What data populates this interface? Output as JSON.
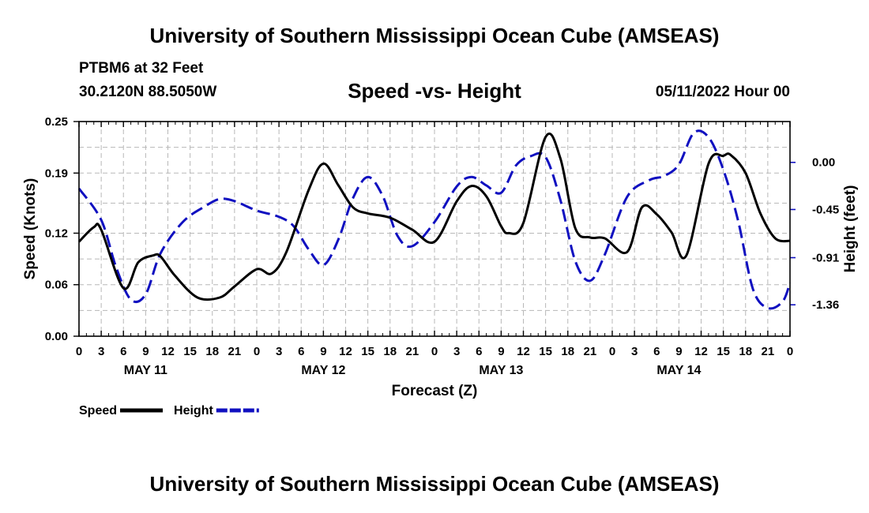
{
  "header": {
    "title": "University of Southern Mississippi Ocean Cube (AMSEAS)",
    "station": "PTBM6 at 32 Feet",
    "coords": "30.2120N  88.5050W",
    "subtitle": "Speed -vs- Height",
    "datetime": "05/11/2022 Hour 00"
  },
  "footer": {
    "title": "University of Southern Mississippi Ocean Cube (AMSEAS)"
  },
  "chart_data": {
    "type": "line",
    "title": "Speed -vs- Height",
    "xlabel": "Forecast (Z)",
    "ylabel": "Speed (Knots)",
    "y2label": "Height (feet)",
    "xlim": [
      0,
      96
    ],
    "ylim": [
      0,
      0.25
    ],
    "y2lim": [
      -1.66,
      0.39
    ],
    "grid": true,
    "xtick_values": [
      0,
      3,
      6,
      9,
      12,
      15,
      18,
      21,
      24,
      27,
      30,
      33,
      36,
      39,
      42,
      45,
      48,
      51,
      54,
      57,
      60,
      63,
      66,
      69,
      72,
      75,
      78,
      81,
      84,
      87,
      90,
      93,
      96
    ],
    "xtick_labels": [
      "0",
      "3",
      "6",
      "9",
      "12",
      "15",
      "18",
      "21",
      "0",
      "3",
      "6",
      "9",
      "12",
      "15",
      "18",
      "21",
      "0",
      "3",
      "6",
      "9",
      "12",
      "15",
      "18",
      "21",
      "0",
      "3",
      "6",
      "9",
      "12",
      "15",
      "18",
      "21",
      "0"
    ],
    "day_labels": [
      {
        "label": "MAY 11",
        "at": 9
      },
      {
        "label": "MAY 12",
        "at": 33
      },
      {
        "label": "MAY 13",
        "at": 57
      },
      {
        "label": "MAY 14",
        "at": 81
      }
    ],
    "ytick_values": [
      0.0,
      0.06,
      0.12,
      0.19,
      0.25
    ],
    "ytick_labels": [
      "0.00",
      "0.06",
      "0.12",
      "0.19",
      "0.25"
    ],
    "y2tick_values": [
      0.0,
      -0.45,
      -0.91,
      -1.36
    ],
    "y2tick_labels": [
      "0.00",
      "-0.45",
      "-0.91",
      "-1.36"
    ],
    "legend_position": "bottom-left",
    "series": [
      {
        "name": "Speed",
        "axis": "left",
        "color": "#000000",
        "style": "solid",
        "x": [
          0,
          2,
          3,
          6,
          8,
          10,
          11,
          13,
          16,
          19,
          21,
          24,
          26,
          28,
          31,
          33,
          35,
          37,
          39,
          42,
          45,
          48,
          51,
          53,
          55,
          57,
          58,
          60,
          63,
          65,
          67,
          69,
          71,
          74,
          76,
          78,
          80,
          82,
          85,
          87,
          88,
          90,
          92,
          94,
          96
        ],
        "values": [
          0.11,
          0.127,
          0.124,
          0.056,
          0.086,
          0.094,
          0.093,
          0.07,
          0.045,
          0.045,
          0.058,
          0.078,
          0.073,
          0.098,
          0.17,
          0.201,
          0.176,
          0.15,
          0.143,
          0.138,
          0.124,
          0.11,
          0.157,
          0.175,
          0.163,
          0.128,
          0.12,
          0.132,
          0.232,
          0.207,
          0.126,
          0.115,
          0.114,
          0.098,
          0.15,
          0.142,
          0.121,
          0.094,
          0.201,
          0.21,
          0.211,
          0.19,
          0.143,
          0.114,
          0.111
        ]
      },
      {
        "name": "Height",
        "axis": "right",
        "color": "#1010c0",
        "style": "dashed",
        "x": [
          0,
          3,
          5,
          7,
          9,
          11,
          14,
          17,
          19,
          21,
          24,
          27,
          29,
          31,
          33,
          35,
          37,
          39,
          41,
          43,
          45,
          48,
          51,
          53,
          55,
          57,
          59,
          61,
          63,
          65,
          67,
          69,
          71,
          74,
          77,
          79,
          81,
          83,
          85,
          87,
          89,
          91,
          93,
          95,
          96
        ],
        "values": [
          -0.25,
          -0.55,
          -1.0,
          -1.31,
          -1.26,
          -0.87,
          -0.57,
          -0.42,
          -0.35,
          -0.37,
          -0.46,
          -0.52,
          -0.61,
          -0.83,
          -0.98,
          -0.74,
          -0.34,
          -0.14,
          -0.32,
          -0.7,
          -0.8,
          -0.57,
          -0.23,
          -0.14,
          -0.22,
          -0.29,
          -0.03,
          0.06,
          0.05,
          -0.36,
          -0.94,
          -1.13,
          -0.88,
          -0.33,
          -0.17,
          -0.13,
          -0.02,
          0.28,
          0.24,
          -0.07,
          -0.56,
          -1.21,
          -1.39,
          -1.33,
          -1.15
        ]
      }
    ]
  }
}
